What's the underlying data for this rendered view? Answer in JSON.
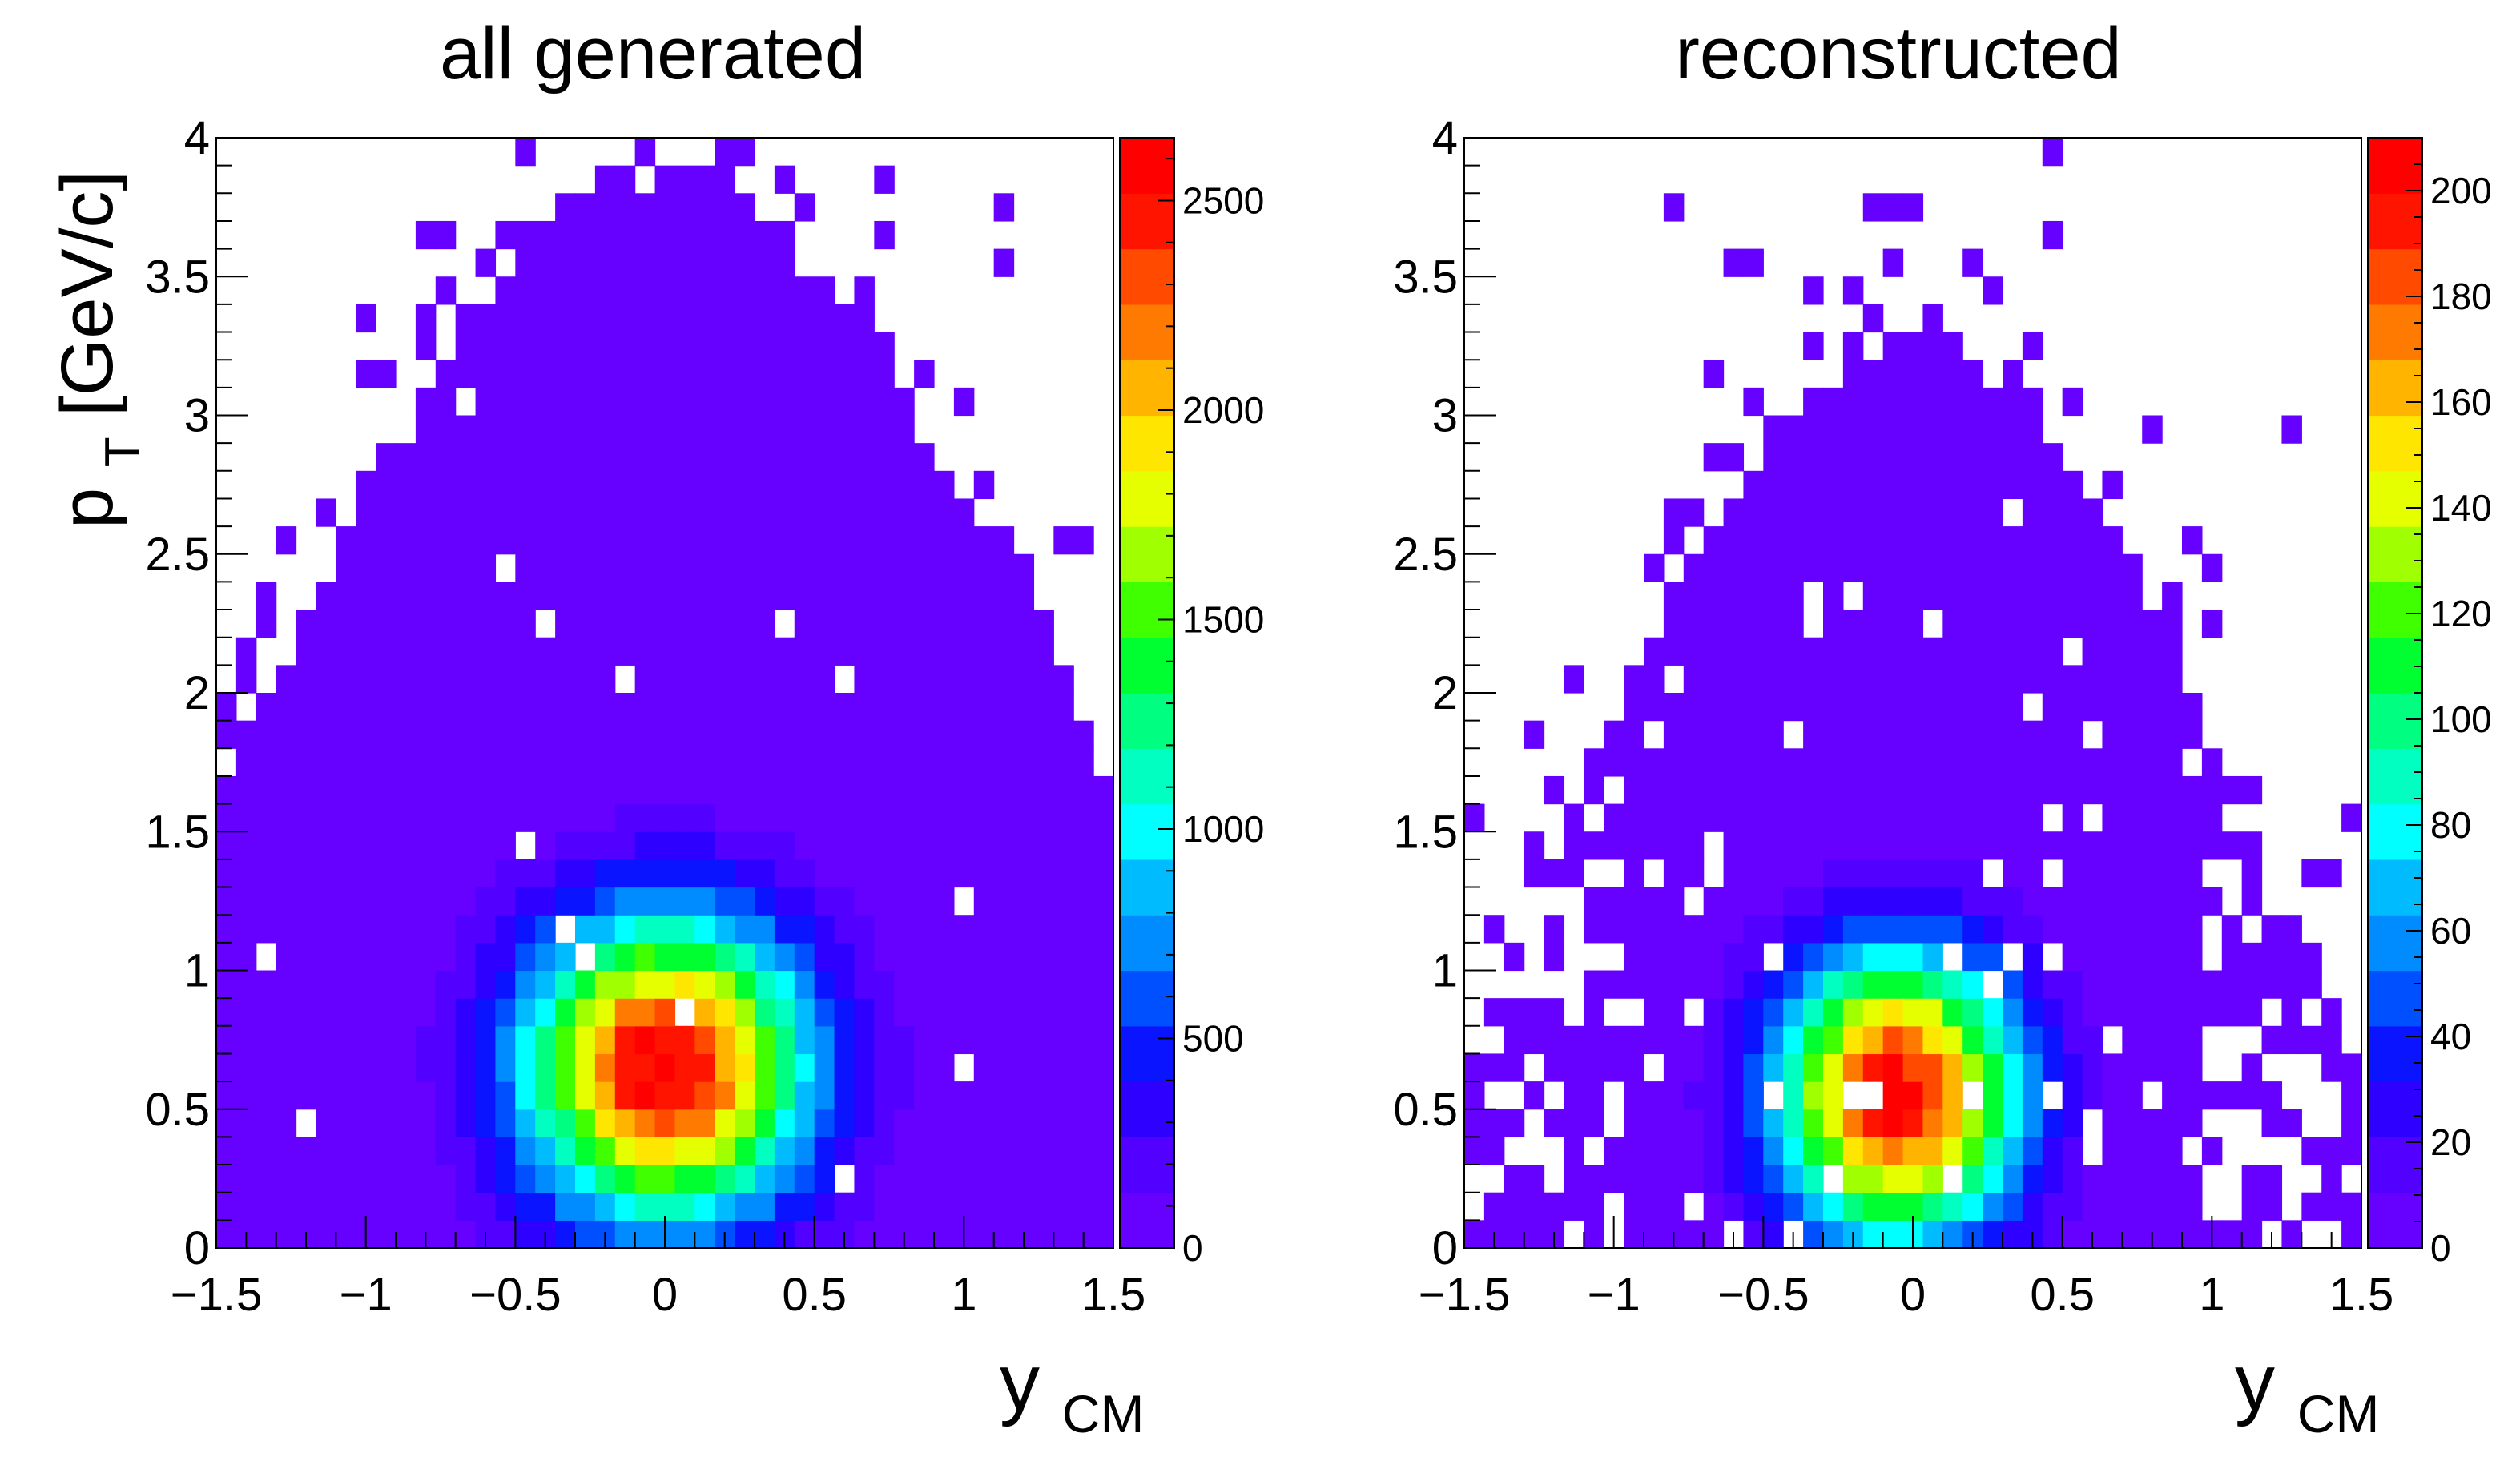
{
  "chart_data": [
    {
      "type": "heatmap",
      "title": "all generated",
      "xlabel_main": "y",
      "xlabel_sub": "CM",
      "ylabel_main": "p",
      "ylabel_sub": "T",
      "ylabel_unit": " [GeV/c]",
      "xlim": [
        -1.5,
        1.5
      ],
      "ylim": [
        0,
        4
      ],
      "x_ticks": [
        -1.5,
        -1,
        -0.5,
        0,
        0.5,
        1,
        1.5
      ],
      "x_tick_labels": [
        "−1.5",
        "−1",
        "−0.5",
        "0",
        "0.5",
        "1",
        "1.5"
      ],
      "y_ticks": [
        0,
        0.5,
        1,
        1.5,
        2,
        2.5,
        3,
        3.5,
        4
      ],
      "y_tick_labels": [
        "0",
        "0.5",
        "1",
        "1.5",
        "2",
        "2.5",
        "3",
        "3.5",
        "4"
      ],
      "z_range": [
        0,
        2650
      ],
      "z_ticks": [
        0,
        500,
        1000,
        1500,
        2000,
        2500
      ],
      "z_tick_labels": [
        "0",
        "500",
        "1000",
        "1500",
        "2000",
        "2500"
      ],
      "bins_x": 45,
      "bins_y": 40,
      "peak": {
        "y": 0.0,
        "pt": 0.65,
        "value": 2600
      },
      "width_y": 0.33,
      "width_pt": 0.38,
      "envelope_pt_at_y0": 3.9,
      "envelope_pt_at_edge": 1.6
    },
    {
      "type": "heatmap",
      "title": "reconstructed",
      "xlabel_main": "y",
      "xlabel_sub": "CM",
      "xlim": [
        -1.5,
        1.5
      ],
      "ylim": [
        0,
        4
      ],
      "x_ticks": [
        -1.5,
        -1,
        -0.5,
        0,
        0.5,
        1,
        1.5
      ],
      "x_tick_labels": [
        "−1.5",
        "−1",
        "−0.5",
        "0",
        "0.5",
        "1",
        "1.5"
      ],
      "y_ticks": [
        0,
        0.5,
        1,
        1.5,
        2,
        2.5,
        3,
        3.5,
        4
      ],
      "y_tick_labels": [
        "0",
        "0.5",
        "1",
        "1.5",
        "2",
        "2.5",
        "3",
        "3.5",
        "4"
      ],
      "z_range": [
        0,
        210
      ],
      "z_ticks": [
        0,
        20,
        40,
        60,
        80,
        100,
        120,
        140,
        160,
        180,
        200
      ],
      "z_tick_labels": [
        "0",
        "20",
        "40",
        "60",
        "80",
        "100",
        "120",
        "140",
        "160",
        "180",
        "200"
      ],
      "bins_x": 45,
      "bins_y": 40,
      "peak": {
        "y": -0.05,
        "pt": 0.55,
        "value": 205
      },
      "width_y": 0.28,
      "width_pt": 0.36,
      "envelope_pt_at_y0": 3.3,
      "envelope_pt_at_edge": 0.6
    }
  ],
  "palette": [
    "#6600ff",
    "#5200ff",
    "#2d00ff",
    "#0a14ff",
    "#0050ff",
    "#008cff",
    "#00bcff",
    "#00ffff",
    "#00ffc0",
    "#00ff80",
    "#00ff30",
    "#40ff00",
    "#a0ff00",
    "#e6ff00",
    "#ffe600",
    "#ffb400",
    "#ff7a00",
    "#ff4a00",
    "#ff1400",
    "#ff0000"
  ]
}
